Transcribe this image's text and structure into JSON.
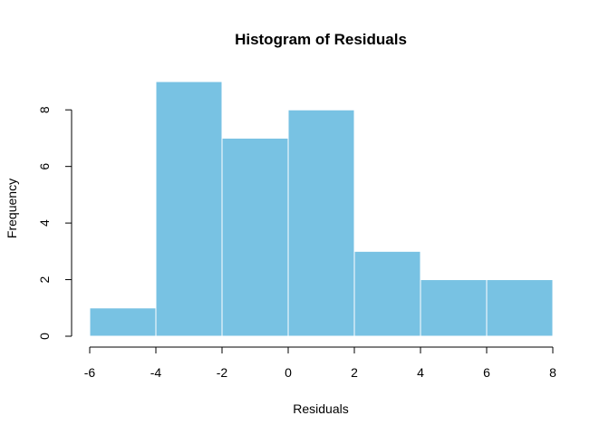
{
  "chart_data": {
    "type": "bar",
    "title": "Histogram of Residuals",
    "xlabel": "Residuals",
    "ylabel": "Frequency",
    "bins": [
      {
        "from": -6,
        "to": -4,
        "count": 1
      },
      {
        "from": -4,
        "to": -2,
        "count": 9
      },
      {
        "from": -2,
        "to": 0,
        "count": 7
      },
      {
        "from": 0,
        "to": 2,
        "count": 8
      },
      {
        "from": 2,
        "to": 4,
        "count": 3
      },
      {
        "from": 4,
        "to": 6,
        "count": 2
      },
      {
        "from": 6,
        "to": 8,
        "count": 2
      }
    ],
    "x_ticks": [
      "-6",
      "-4",
      "-2",
      "0",
      "2",
      "4",
      "6",
      "8"
    ],
    "y_ticks": [
      "0",
      "2",
      "4",
      "6",
      "8"
    ],
    "xlim": [
      -6,
      8
    ],
    "ylim": [
      0,
      9
    ],
    "bar_color": "#78c2e3",
    "grid": false,
    "legend": "none"
  }
}
